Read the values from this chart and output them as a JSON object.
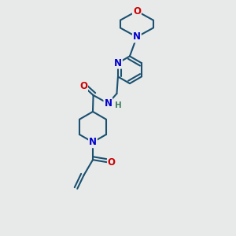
{
  "bg_color": "#e8eaea",
  "bond_color": "#1a5070",
  "atom_colors": {
    "O": "#cc0000",
    "N": "#0000cc",
    "H": "#408060"
  },
  "line_width": 1.5,
  "font_size": 8.5,
  "fig_width": 3.0,
  "fig_height": 3.0,
  "dpi": 100
}
